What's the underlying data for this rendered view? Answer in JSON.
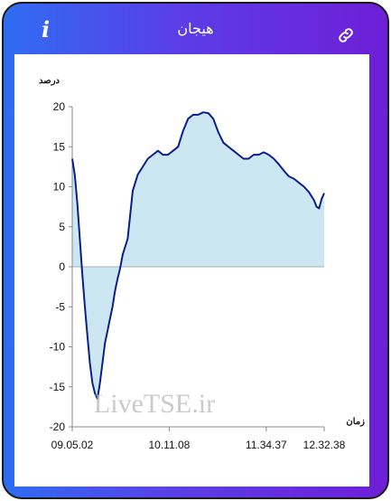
{
  "header": {
    "title": "هیجان",
    "info_icon": "info-icon",
    "link_icon": "link-icon"
  },
  "colors": {
    "gradient_start": "#2f6df3",
    "gradient_end": "#6e1fd6",
    "line": "#0a1e8c",
    "fill": "#cce6f2",
    "zero_line": "#a0b0b8"
  },
  "watermark": "LiveTSE.ir",
  "chart_data": {
    "type": "area",
    "ylabel": "درصد",
    "xlabel": "زمان",
    "ylim": [
      -20,
      20
    ],
    "yticks": [
      20,
      15,
      10,
      5,
      0,
      -5,
      -10,
      -15,
      -20
    ],
    "xticks": [
      "09.05.02",
      "10.11.08",
      "11.34.37",
      "12.32.38"
    ],
    "xtick_positions": [
      0,
      0.385,
      0.77,
      1.0
    ],
    "x": [
      0,
      0.01,
      0.02,
      0.03,
      0.04,
      0.05,
      0.06,
      0.07,
      0.08,
      0.09,
      0.1,
      0.11,
      0.12,
      0.13,
      0.14,
      0.15,
      0.16,
      0.17,
      0.18,
      0.19,
      0.2,
      0.22,
      0.24,
      0.26,
      0.28,
      0.3,
      0.32,
      0.34,
      0.36,
      0.38,
      0.4,
      0.42,
      0.44,
      0.46,
      0.48,
      0.5,
      0.52,
      0.54,
      0.56,
      0.58,
      0.6,
      0.62,
      0.64,
      0.66,
      0.68,
      0.7,
      0.72,
      0.74,
      0.76,
      0.78,
      0.8,
      0.82,
      0.84,
      0.86,
      0.88,
      0.9,
      0.92,
      0.94,
      0.96,
      0.97,
      0.98,
      0.99,
      1.0
    ],
    "series": [
      {
        "values": [
          13.5,
          11.5,
          8.0,
          3.5,
          -1.0,
          -5.0,
          -8.5,
          -12.0,
          -14.5,
          -15.8,
          -16.5,
          -14.5,
          -12.0,
          -9.5,
          -8.0,
          -6.5,
          -5.0,
          -3.0,
          -1.5,
          -0.2,
          1.5,
          3.5,
          9.5,
          11.5,
          12.5,
          13.5,
          14.0,
          14.5,
          14.0,
          14.0,
          14.5,
          15.0,
          17.0,
          18.5,
          19.0,
          19.0,
          19.3,
          19.2,
          18.5,
          16.8,
          15.5,
          15.0,
          14.5,
          14.0,
          13.5,
          13.5,
          14.0,
          14.0,
          14.3,
          14.0,
          13.5,
          12.8,
          12.0,
          11.3,
          11.0,
          10.5,
          10.0,
          9.3,
          8.3,
          7.5,
          7.3,
          8.5,
          9.2
        ]
      }
    ]
  }
}
